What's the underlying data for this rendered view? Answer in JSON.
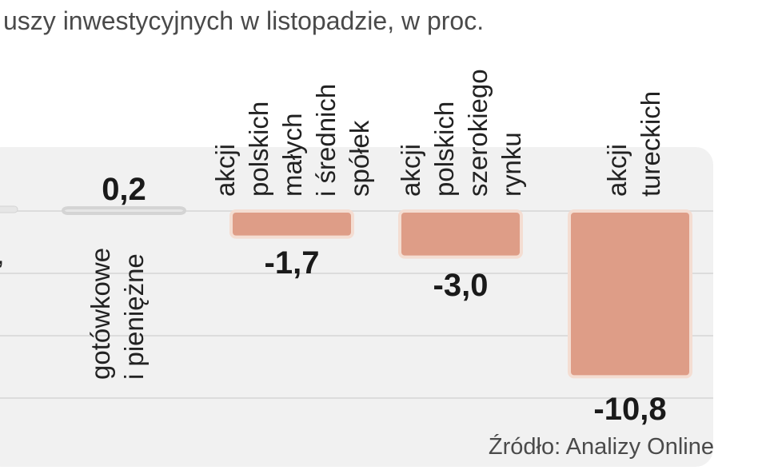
{
  "chart_data": {
    "type": "bar",
    "title": "uszy inwestycyjnych w listopadzie, w proc.",
    "categories": [
      [
        "gotówkowe",
        "i pieniężne"
      ],
      [
        "akcji",
        "polskich",
        "małych",
        "i średnich",
        "spółek"
      ],
      [
        "akcji",
        "polskich",
        "szerokiego",
        "rynku"
      ],
      [
        "akcji",
        "tureckich"
      ]
    ],
    "values": [
      0.2,
      -1.7,
      -3.0,
      -10.8
    ],
    "value_labels": [
      "0,2",
      "-1,7",
      "-3,0",
      "-10,8"
    ],
    "ylim": [
      -11.5,
      1
    ],
    "grid": true,
    "bar_color": "#de9d87",
    "bar_edge_color": "#f4ddd2",
    "panel_color": "#f1f1f1",
    "source": "Źródło: Analizy Online"
  }
}
